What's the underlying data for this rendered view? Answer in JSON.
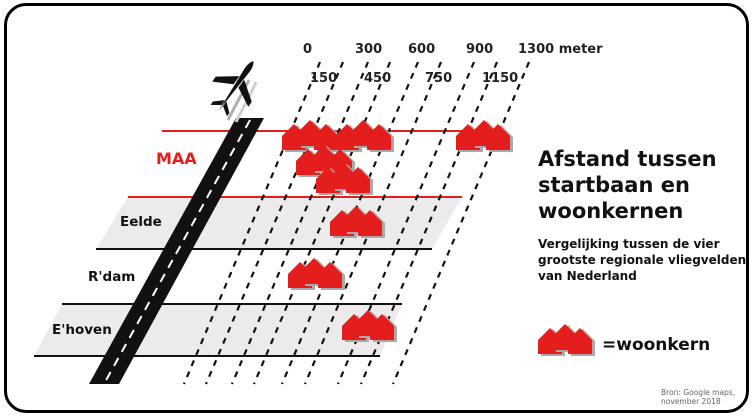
{
  "title": "Afstand tussen startbaan en woonkernen",
  "subtitle": "Vergelijking tussen de vier grootste regionale vliegvelden van Nederland",
  "distances_top": [
    "0",
    "300",
    "600",
    "900",
    "1300 meter"
  ],
  "distances_bottom": [
    "150",
    "450",
    "750",
    "1150"
  ],
  "airports": [
    {
      "label": "MAA",
      "color": "#e41d1d",
      "highlight": true
    },
    {
      "label": "Eelde",
      "color": "#111111",
      "highlight": false
    },
    {
      "label": "R'dam",
      "color": "#111111",
      "highlight": false
    },
    {
      "label": "E'hoven",
      "color": "#111111",
      "highlight": false
    }
  ],
  "legend": {
    "label": "=woonkern",
    "icon": "house-cluster-icon"
  },
  "source": "Bron: Google maps, november 2018",
  "colors": {
    "accent": "#e41d1d",
    "band": "#ebebeb",
    "runway": "#111111",
    "house_shadow": "#a9a9a9"
  }
}
